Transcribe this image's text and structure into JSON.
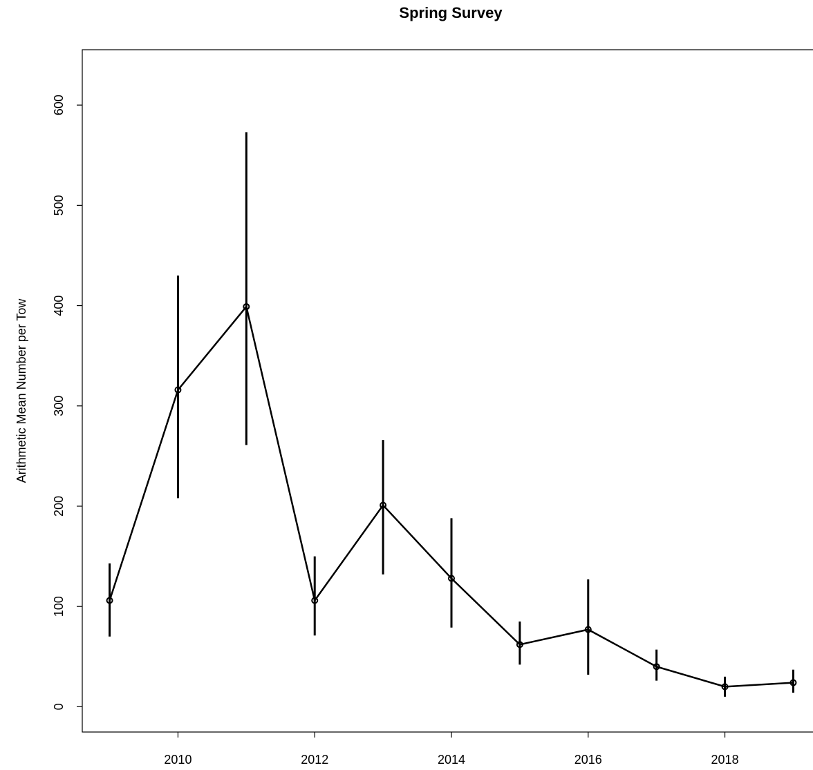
{
  "chart_data": {
    "type": "line",
    "title": "Spring Survey",
    "y_label": "Arithmetic Mean Number per Tow",
    "x": [
      2009,
      2010,
      2011,
      2012,
      2013,
      2014,
      2015,
      2016,
      2017,
      2018,
      2019
    ],
    "series": [
      {
        "color": "#000000",
        "values": [
          106,
          316,
          399,
          106,
          201,
          128,
          62,
          77,
          40,
          20,
          24
        ],
        "lower": [
          70,
          208,
          261,
          71,
          132,
          79,
          42,
          32,
          26,
          10,
          14
        ],
        "upper": [
          143,
          430,
          573,
          150,
          266,
          188,
          85,
          127,
          57,
          30,
          37
        ]
      }
    ],
    "xlim": [
      2008.6,
      2019.4
    ],
    "xticks": [
      2010,
      2012,
      2014,
      2016,
      2018
    ],
    "ylim": [
      -25.2,
      655.2
    ],
    "yticks": [
      0,
      100,
      200,
      300,
      400,
      500,
      600
    ]
  }
}
